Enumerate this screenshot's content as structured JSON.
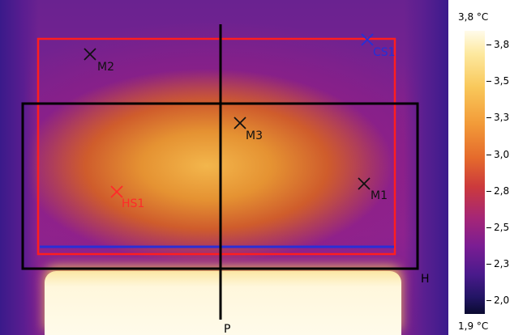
{
  "thermal_image": {
    "spot_markers": [
      {
        "label": "M1",
        "color": "#111111"
      },
      {
        "label": "M2",
        "color": "#111111"
      },
      {
        "label": "M3",
        "color": "#111111"
      },
      {
        "label": "HS1",
        "color": "#ff2a2a"
      },
      {
        "label": "CS1",
        "color": "#2430d8"
      }
    ],
    "line_labels": {
      "vertical": "P",
      "horizontal": "H"
    },
    "colors": {
      "box_red": "#ff1e1e",
      "box_black": "#000000",
      "line_blue": "#2a2ed6"
    }
  },
  "scale": {
    "max_label": "3,8 °C",
    "min_label": "1,9 °C",
    "ticks": [
      "3,8",
      "3,5",
      "3,3",
      "3,0",
      "2,8",
      "2,5",
      "2,3",
      "2,0"
    ]
  }
}
